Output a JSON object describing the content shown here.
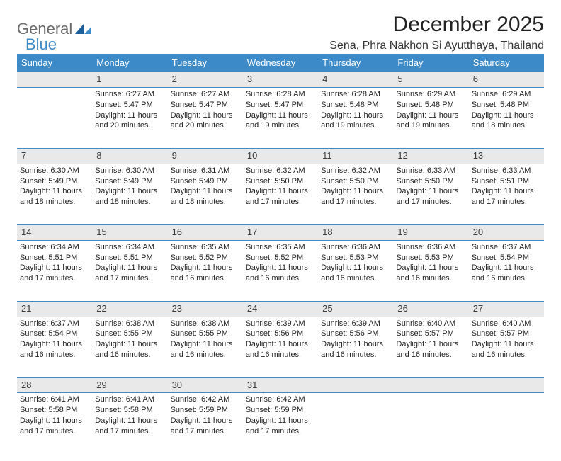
{
  "brand": {
    "text1": "General",
    "text2": "Blue"
  },
  "title": "December 2025",
  "location": "Sena, Phra Nakhon Si Ayutthaya, Thailand",
  "colors": {
    "accent": "#3d8ac9",
    "dayStrip": "#e9e9e9",
    "text": "#222222",
    "bg": "#ffffff"
  },
  "dayHeaders": [
    "Sunday",
    "Monday",
    "Tuesday",
    "Wednesday",
    "Thursday",
    "Friday",
    "Saturday"
  ],
  "weeks": [
    {
      "nums": [
        "",
        "1",
        "2",
        "3",
        "4",
        "5",
        "6"
      ],
      "cells": [
        null,
        {
          "sunrise": "Sunrise: 6:27 AM",
          "sunset": "Sunset: 5:47 PM",
          "day1": "Daylight: 11 hours",
          "day2": "and 20 minutes."
        },
        {
          "sunrise": "Sunrise: 6:27 AM",
          "sunset": "Sunset: 5:47 PM",
          "day1": "Daylight: 11 hours",
          "day2": "and 20 minutes."
        },
        {
          "sunrise": "Sunrise: 6:28 AM",
          "sunset": "Sunset: 5:47 PM",
          "day1": "Daylight: 11 hours",
          "day2": "and 19 minutes."
        },
        {
          "sunrise": "Sunrise: 6:28 AM",
          "sunset": "Sunset: 5:48 PM",
          "day1": "Daylight: 11 hours",
          "day2": "and 19 minutes."
        },
        {
          "sunrise": "Sunrise: 6:29 AM",
          "sunset": "Sunset: 5:48 PM",
          "day1": "Daylight: 11 hours",
          "day2": "and 19 minutes."
        },
        {
          "sunrise": "Sunrise: 6:29 AM",
          "sunset": "Sunset: 5:48 PM",
          "day1": "Daylight: 11 hours",
          "day2": "and 18 minutes."
        }
      ]
    },
    {
      "nums": [
        "7",
        "8",
        "9",
        "10",
        "11",
        "12",
        "13"
      ],
      "cells": [
        {
          "sunrise": "Sunrise: 6:30 AM",
          "sunset": "Sunset: 5:49 PM",
          "day1": "Daylight: 11 hours",
          "day2": "and 18 minutes."
        },
        {
          "sunrise": "Sunrise: 6:30 AM",
          "sunset": "Sunset: 5:49 PM",
          "day1": "Daylight: 11 hours",
          "day2": "and 18 minutes."
        },
        {
          "sunrise": "Sunrise: 6:31 AM",
          "sunset": "Sunset: 5:49 PM",
          "day1": "Daylight: 11 hours",
          "day2": "and 18 minutes."
        },
        {
          "sunrise": "Sunrise: 6:32 AM",
          "sunset": "Sunset: 5:50 PM",
          "day1": "Daylight: 11 hours",
          "day2": "and 17 minutes."
        },
        {
          "sunrise": "Sunrise: 6:32 AM",
          "sunset": "Sunset: 5:50 PM",
          "day1": "Daylight: 11 hours",
          "day2": "and 17 minutes."
        },
        {
          "sunrise": "Sunrise: 6:33 AM",
          "sunset": "Sunset: 5:50 PM",
          "day1": "Daylight: 11 hours",
          "day2": "and 17 minutes."
        },
        {
          "sunrise": "Sunrise: 6:33 AM",
          "sunset": "Sunset: 5:51 PM",
          "day1": "Daylight: 11 hours",
          "day2": "and 17 minutes."
        }
      ]
    },
    {
      "nums": [
        "14",
        "15",
        "16",
        "17",
        "18",
        "19",
        "20"
      ],
      "cells": [
        {
          "sunrise": "Sunrise: 6:34 AM",
          "sunset": "Sunset: 5:51 PM",
          "day1": "Daylight: 11 hours",
          "day2": "and 17 minutes."
        },
        {
          "sunrise": "Sunrise: 6:34 AM",
          "sunset": "Sunset: 5:51 PM",
          "day1": "Daylight: 11 hours",
          "day2": "and 17 minutes."
        },
        {
          "sunrise": "Sunrise: 6:35 AM",
          "sunset": "Sunset: 5:52 PM",
          "day1": "Daylight: 11 hours",
          "day2": "and 16 minutes."
        },
        {
          "sunrise": "Sunrise: 6:35 AM",
          "sunset": "Sunset: 5:52 PM",
          "day1": "Daylight: 11 hours",
          "day2": "and 16 minutes."
        },
        {
          "sunrise": "Sunrise: 6:36 AM",
          "sunset": "Sunset: 5:53 PM",
          "day1": "Daylight: 11 hours",
          "day2": "and 16 minutes."
        },
        {
          "sunrise": "Sunrise: 6:36 AM",
          "sunset": "Sunset: 5:53 PM",
          "day1": "Daylight: 11 hours",
          "day2": "and 16 minutes."
        },
        {
          "sunrise": "Sunrise: 6:37 AM",
          "sunset": "Sunset: 5:54 PM",
          "day1": "Daylight: 11 hours",
          "day2": "and 16 minutes."
        }
      ]
    },
    {
      "nums": [
        "21",
        "22",
        "23",
        "24",
        "25",
        "26",
        "27"
      ],
      "cells": [
        {
          "sunrise": "Sunrise: 6:37 AM",
          "sunset": "Sunset: 5:54 PM",
          "day1": "Daylight: 11 hours",
          "day2": "and 16 minutes."
        },
        {
          "sunrise": "Sunrise: 6:38 AM",
          "sunset": "Sunset: 5:55 PM",
          "day1": "Daylight: 11 hours",
          "day2": "and 16 minutes."
        },
        {
          "sunrise": "Sunrise: 6:38 AM",
          "sunset": "Sunset: 5:55 PM",
          "day1": "Daylight: 11 hours",
          "day2": "and 16 minutes."
        },
        {
          "sunrise": "Sunrise: 6:39 AM",
          "sunset": "Sunset: 5:56 PM",
          "day1": "Daylight: 11 hours",
          "day2": "and 16 minutes."
        },
        {
          "sunrise": "Sunrise: 6:39 AM",
          "sunset": "Sunset: 5:56 PM",
          "day1": "Daylight: 11 hours",
          "day2": "and 16 minutes."
        },
        {
          "sunrise": "Sunrise: 6:40 AM",
          "sunset": "Sunset: 5:57 PM",
          "day1": "Daylight: 11 hours",
          "day2": "and 16 minutes."
        },
        {
          "sunrise": "Sunrise: 6:40 AM",
          "sunset": "Sunset: 5:57 PM",
          "day1": "Daylight: 11 hours",
          "day2": "and 16 minutes."
        }
      ]
    },
    {
      "nums": [
        "28",
        "29",
        "30",
        "31",
        "",
        "",
        ""
      ],
      "cells": [
        {
          "sunrise": "Sunrise: 6:41 AM",
          "sunset": "Sunset: 5:58 PM",
          "day1": "Daylight: 11 hours",
          "day2": "and 17 minutes."
        },
        {
          "sunrise": "Sunrise: 6:41 AM",
          "sunset": "Sunset: 5:58 PM",
          "day1": "Daylight: 11 hours",
          "day2": "and 17 minutes."
        },
        {
          "sunrise": "Sunrise: 6:42 AM",
          "sunset": "Sunset: 5:59 PM",
          "day1": "Daylight: 11 hours",
          "day2": "and 17 minutes."
        },
        {
          "sunrise": "Sunrise: 6:42 AM",
          "sunset": "Sunset: 5:59 PM",
          "day1": "Daylight: 11 hours",
          "day2": "and 17 minutes."
        },
        null,
        null,
        null
      ]
    }
  ]
}
